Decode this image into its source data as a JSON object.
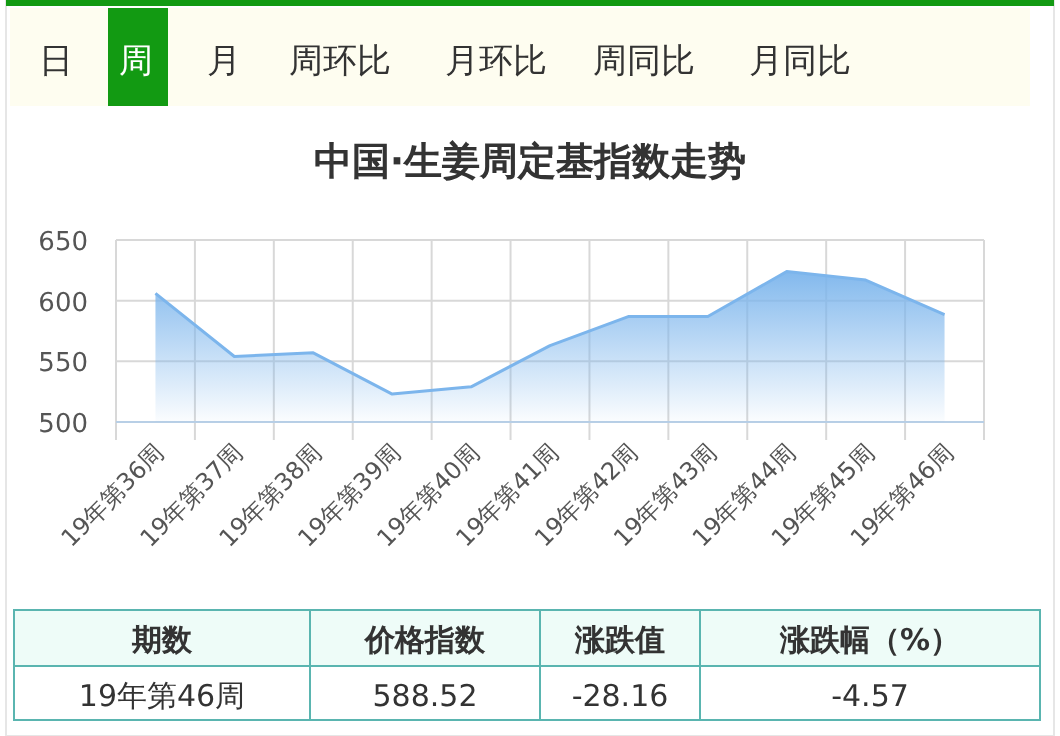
{
  "chart_data": [
    {
      "type": "area",
      "title": "中国·生姜周定基指数走势",
      "categories": [
        "19年第36周",
        "19年第37周",
        "19年第38周",
        "19年第39周",
        "19年第40周",
        "19年第41周",
        "19年第42周",
        "19年第43周",
        "19年第44周",
        "19年第45周",
        "19年第46周"
      ],
      "values": [
        606,
        554,
        557,
        523,
        529,
        563,
        587,
        587,
        624,
        617,
        588.52
      ],
      "color": "#7cb5ec",
      "ylim": [
        500,
        650
      ],
      "yticks": [
        500,
        550,
        600,
        650
      ],
      "grid": true
    },
    {
      "type": "other",
      "annotations": [
        "日",
        "周",
        "月",
        "周环比",
        "月环比",
        "周同比",
        "月同比",
        "期数",
        "价格指数",
        "涨跌值",
        "涨跌幅（%）",
        "19年第46周",
        "588.52",
        "-28.16",
        "-4.57"
      ]
    }
  ]
}
